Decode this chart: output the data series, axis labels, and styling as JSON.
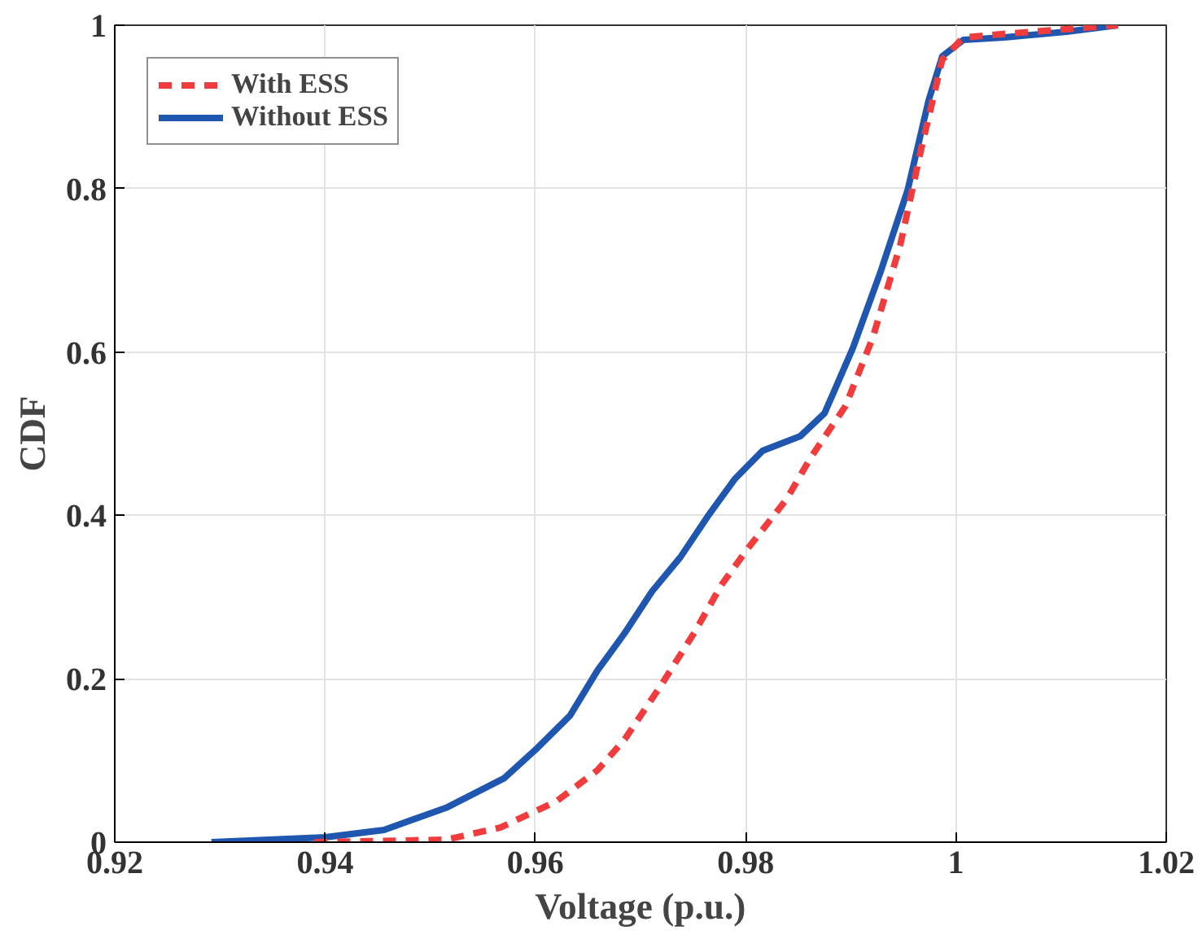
{
  "chart_data": {
    "type": "line",
    "xlabel": "Voltage (p.u.)",
    "ylabel": "CDF",
    "xlim": [
      0.92,
      1.02
    ],
    "xticks": [
      0.92,
      0.94,
      0.96,
      0.98,
      1,
      1.02
    ],
    "ylim": [
      0,
      1
    ],
    "yticks": [
      0,
      0.2,
      0.4,
      0.6,
      0.8,
      1
    ],
    "grid": true,
    "legend": "top left",
    "series": [
      {
        "name": "With ESS",
        "color": "#f03c3c",
        "line_style": "dashed",
        "x": [
          0.939,
          0.9515,
          0.9567,
          0.962,
          0.9659,
          0.9685,
          0.9718,
          0.9751,
          0.9777,
          0.9803,
          0.9839,
          0.9862,
          0.9895,
          0.9921,
          0.9947,
          0.9967,
          0.9987,
          1.0007,
          1.0052,
          1.0154
        ],
        "values": [
          0,
          0.003,
          0.018,
          0.05,
          0.088,
          0.126,
          0.189,
          0.256,
          0.315,
          0.361,
          0.42,
          0.471,
          0.534,
          0.618,
          0.731,
          0.849,
          0.958,
          0.985,
          0.99,
          1.0
        ]
      },
      {
        "name": "Without ESS",
        "color": "#1f56b0",
        "line_style": "solid",
        "x": [
          0.9292,
          0.94,
          0.9456,
          0.9515,
          0.957,
          0.96,
          0.9633,
          0.9659,
          0.9685,
          0.9711,
          0.9738,
          0.9764,
          0.979,
          0.9816,
          0.9852,
          0.9875,
          0.9902,
          0.9928,
          0.9954,
          0.9974,
          0.9987,
          1.0007,
          1.0046,
          1.0105,
          1.0154
        ],
        "values": [
          0,
          0.006,
          0.015,
          0.042,
          0.078,
          0.113,
          0.155,
          0.21,
          0.256,
          0.307,
          0.349,
          0.399,
          0.445,
          0.479,
          0.497,
          0.525,
          0.605,
          0.697,
          0.798,
          0.908,
          0.962,
          0.982,
          0.985,
          0.992,
          1.0
        ]
      }
    ]
  }
}
